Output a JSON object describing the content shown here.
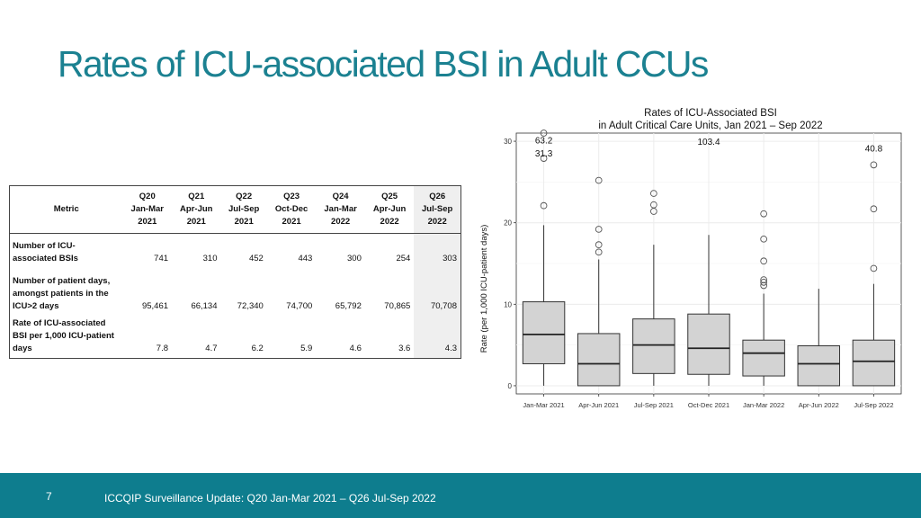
{
  "slide": {
    "title": "Rates of ICU-associated BSI in Adult CCUs",
    "page_number": "7",
    "footer_text": "ICCQIP Surveillance Update: Q20 Jan-Mar 2021 – Q26 Jul-Sep 2022",
    "colors": {
      "title": "#1b8191",
      "footer_bg": "#0e7d8e",
      "box_fill": "#d3d3d3",
      "grid": "#ececec"
    }
  },
  "table": {
    "metric_header": "Metric",
    "columns": [
      {
        "q": "Q20",
        "period": "Jan-Mar",
        "year": "2021"
      },
      {
        "q": "Q21",
        "period": "Apr-Jun",
        "year": "2021"
      },
      {
        "q": "Q22",
        "period": "Jul-Sep",
        "year": "2021"
      },
      {
        "q": "Q23",
        "period": "Oct-Dec",
        "year": "2021"
      },
      {
        "q": "Q24",
        "period": "Jan-Mar",
        "year": "2022"
      },
      {
        "q": "Q25",
        "period": "Apr-Jun",
        "year": "2022"
      },
      {
        "q": "Q26",
        "period": "Jul-Sep",
        "year": "2022"
      }
    ],
    "rows": [
      {
        "label_lines": [
          "Number of ICU-",
          "associated BSIs"
        ],
        "values": [
          "741",
          "310",
          "452",
          "443",
          "300",
          "254",
          "303"
        ]
      },
      {
        "label_lines": [
          "Number of patient days,",
          "amongst patients in the",
          "ICU>2 days"
        ],
        "values": [
          "95,461",
          "66,134",
          "72,340",
          "74,700",
          "65,792",
          "70,865",
          "70,708"
        ]
      },
      {
        "label_lines": [
          "Rate of ICU-associated",
          "BSI per 1,000 ICU-patient",
          "days"
        ],
        "values": [
          "7.8",
          "4.7",
          "6.2",
          "5.9",
          "4.6",
          "3.6",
          "4.3"
        ]
      }
    ]
  },
  "chart_data": {
    "type": "boxplot",
    "title": "Rates of ICU-Associated BSI",
    "subtitle": "in Adult Critical Care Units, Jan 2021 – Sep 2022",
    "xlabel": "",
    "ylabel": "Rate (per 1,000 ICU-patient days)",
    "ylim": [
      -1,
      31
    ],
    "yticks": [
      0,
      10,
      20,
      30
    ],
    "grid": true,
    "categories": [
      "Jan-Mar 2021",
      "Apr-Jun 2021",
      "Jul-Sep 2021",
      "Oct-Dec 2021",
      "Jan-Mar 2022",
      "Apr-Jun 2022",
      "Jul-Sep 2022"
    ],
    "boxes": [
      {
        "whisker_low": 0,
        "q1": 2.7,
        "median": 6.3,
        "q3": 10.3,
        "whisker_high": 19.7,
        "outliers": [
          22.1,
          27.9,
          31.0
        ]
      },
      {
        "whisker_low": 0,
        "q1": 0,
        "median": 2.7,
        "q3": 6.4,
        "whisker_high": 15.5,
        "outliers": [
          16.4,
          17.3,
          19.2,
          25.2
        ]
      },
      {
        "whisker_low": 0,
        "q1": 1.5,
        "median": 5.0,
        "q3": 8.2,
        "whisker_high": 17.3,
        "outliers": [
          21.4,
          22.2,
          23.6
        ]
      },
      {
        "whisker_low": 0,
        "q1": 1.4,
        "median": 4.6,
        "q3": 8.8,
        "whisker_high": 18.5,
        "outliers": []
      },
      {
        "whisker_low": 0,
        "q1": 1.2,
        "median": 4.0,
        "q3": 5.6,
        "whisker_high": 11.3,
        "outliers": [
          12.3,
          12.7,
          13.0,
          15.3,
          18.0,
          21.1
        ]
      },
      {
        "whisker_low": 0,
        "q1": 0,
        "median": 2.7,
        "q3": 4.9,
        "whisker_high": 11.9,
        "outliers": []
      },
      {
        "whisker_low": 0,
        "q1": 0,
        "median": 3.0,
        "q3": 5.6,
        "whisker_high": 12.5,
        "outliers": [
          14.4,
          21.7,
          27.1
        ]
      }
    ],
    "annotations": [
      {
        "text": "63.2",
        "category": 0,
        "y": 30.2
      },
      {
        "text": "31.3",
        "category": 0,
        "y": 28.6
      },
      {
        "text": "103.4",
        "category": 3,
        "y": 30.0
      },
      {
        "text": "40.8",
        "category": 6,
        "y": 29.2
      }
    ]
  }
}
